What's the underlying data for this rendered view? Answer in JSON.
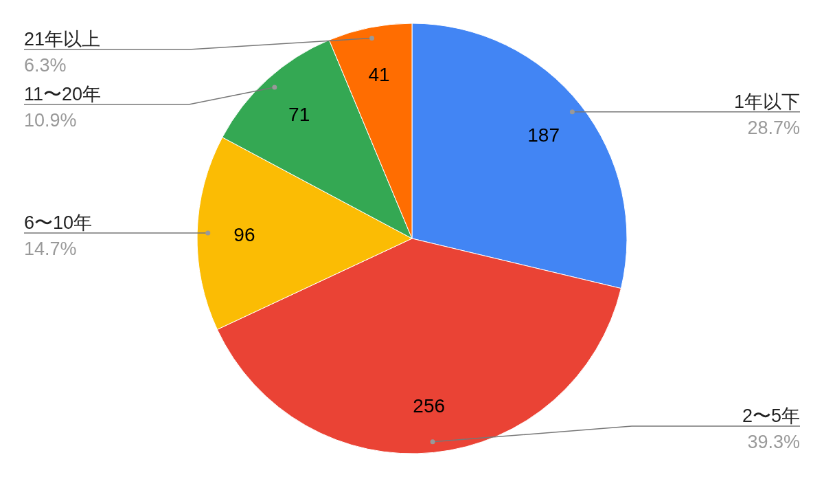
{
  "chart_data": {
    "type": "pie",
    "categories": [
      "1年以下",
      "2〜5年",
      "6〜10年",
      "11〜20年",
      "21年以上"
    ],
    "values": [
      187,
      256,
      96,
      71,
      41
    ],
    "colors": [
      "#4285f4",
      "#ea4335",
      "#fbbc04",
      "#34a853",
      "#ff6d01"
    ],
    "data_labels": true,
    "legend": false,
    "annotations": [
      {
        "text": "28.7%",
        "x": "1年以下"
      },
      {
        "text": "39.3%",
        "x": "2〜5年"
      },
      {
        "text": "14.7%",
        "x": "6〜10年"
      },
      {
        "text": "10.9%",
        "x": "11〜20年"
      },
      {
        "text": "6.3%",
        "x": "21年以上"
      }
    ]
  }
}
